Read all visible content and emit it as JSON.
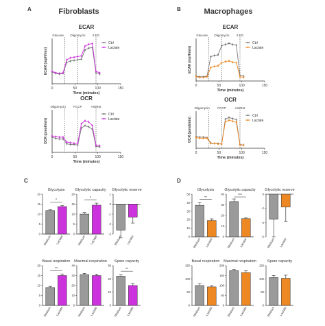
{
  "panel_labels": {
    "A": "A",
    "B": "B",
    "C": "C",
    "D": "D"
  },
  "headers": {
    "left": "Fibroblasts",
    "right": "Macrophages"
  },
  "colors": {
    "ctrl": "#777777",
    "fib_lactate": "#cc33dd",
    "mac_lactate": "#ee8822",
    "bar_gray": "#9a9a9a",
    "axis": "#333333"
  },
  "chart_data": [
    {
      "id": "A-ECAR",
      "type": "line",
      "title": "ECAR",
      "xlabel": "Time (minutes)",
      "ylabel": "ECAR (mpH/min)",
      "xlim": [
        0,
        150
      ],
      "xticks": [
        "0",
        "50",
        "100",
        "150"
      ],
      "injections": [
        "Glucose",
        "Oligomycin",
        "2-DG"
      ],
      "x": [
        0,
        8,
        16,
        24,
        32,
        40,
        48,
        56,
        64,
        72,
        80,
        88,
        96,
        104
      ],
      "ylim": [
        0,
        70
      ],
      "series": [
        {
          "name": "Ctrl",
          "values": [
            18,
            16,
            15,
            16,
            33,
            35,
            36,
            37,
            38,
            52,
            55,
            56,
            17,
            15
          ]
        },
        {
          "name": "Lactate",
          "values": [
            19,
            17,
            16,
            17,
            37,
            40,
            41,
            42,
            43,
            58,
            61,
            62,
            19,
            17
          ]
        }
      ],
      "legend": "right"
    },
    {
      "id": "A-OCR",
      "type": "line",
      "title": "OCR",
      "xlabel": "Time (minutes)",
      "ylabel": "OCR (pmol/min)",
      "xlim": [
        0,
        150
      ],
      "xticks": [
        "0",
        "50",
        "100",
        "150"
      ],
      "injections": [
        "Oligomycin",
        "FCCP",
        "AntiRot"
      ],
      "x": [
        0,
        8,
        16,
        24,
        32,
        40,
        48,
        56,
        64,
        72,
        80,
        88,
        96,
        104
      ],
      "ylim": [
        0,
        70
      ],
      "series": [
        {
          "name": "Ctrl",
          "values": [
            25,
            23,
            22,
            22,
            14,
            13,
            13,
            12,
            40,
            44,
            42,
            38,
            10,
            9
          ]
        },
        {
          "name": "Lactate",
          "values": [
            27,
            26,
            25,
            25,
            17,
            16,
            15,
            15,
            47,
            52,
            50,
            44,
            12,
            11
          ]
        }
      ],
      "legend": "right"
    },
    {
      "id": "B-ECAR",
      "type": "line",
      "title": "ECAR",
      "xlabel": "Time (minutes)",
      "ylabel": "ECAR (mpH/min)",
      "xlim": [
        0,
        150
      ],
      "xticks": [
        "0",
        "50",
        "100",
        "150"
      ],
      "injections": [
        "Glucose",
        "Oligomycin",
        "2-DG"
      ],
      "x": [
        0,
        8,
        16,
        24,
        32,
        40,
        48,
        56,
        64,
        72,
        80,
        88,
        96,
        104
      ],
      "ylim": [
        0,
        70
      ],
      "series": [
        {
          "name": "Ctrl",
          "values": [
            8,
            7,
            7,
            8,
            40,
            42,
            43,
            58,
            60,
            62,
            60,
            59,
            9,
            8
          ]
        },
        {
          "name": "Lactate",
          "values": [
            7,
            6,
            6,
            7,
            22,
            24,
            25,
            30,
            32,
            33,
            31,
            30,
            7,
            6
          ]
        }
      ],
      "legend": "right"
    },
    {
      "id": "B-OCR",
      "type": "line",
      "title": "OCR",
      "xlabel": "Time (minutes)",
      "ylabel": "OCR (pmol/min)",
      "xlim": [
        0,
        150
      ],
      "xticks": [
        "0",
        "50",
        "100",
        "150"
      ],
      "injections": [
        "Oligomycin",
        "FCCP",
        "AntiRot"
      ],
      "x": [
        0,
        8,
        16,
        24,
        32,
        40,
        48,
        56,
        64,
        72,
        80,
        88,
        96,
        104
      ],
      "ylim": [
        0,
        70
      ],
      "series": [
        {
          "name": "Ctrl",
          "values": [
            22,
            21,
            21,
            20,
            10,
            9,
            9,
            8,
            55,
            58,
            56,
            54,
            7,
            6
          ]
        },
        {
          "name": "Lactate",
          "values": [
            20,
            19,
            19,
            19,
            9,
            9,
            8,
            8,
            50,
            53,
            51,
            49,
            6,
            6
          ]
        }
      ],
      "legend": "right"
    },
    {
      "id": "C-1",
      "type": "bar",
      "title": "Glycolysis",
      "categories": [
        "Medium",
        "Lactate"
      ],
      "values": [
        11.8,
        13.8
      ],
      "errors": [
        0.4,
        0.6
      ],
      "ylim": [
        0,
        20
      ],
      "yticks": [
        "0",
        "5",
        "10",
        "15",
        "20"
      ],
      "sig": "*"
    },
    {
      "id": "C-2",
      "type": "bar",
      "title": "Glycolytic capacity",
      "categories": [
        "Medium",
        "Lactate"
      ],
      "values": [
        10.0,
        14.5
      ],
      "errors": [
        0.8,
        1.0
      ],
      "ylim": [
        0,
        20
      ],
      "yticks": [
        "0",
        "5",
        "10",
        "15",
        "20"
      ],
      "sig": "*"
    },
    {
      "id": "C-3",
      "type": "bar",
      "title": "Glycolytic reserve",
      "categories": [
        "Medium",
        "Lactate"
      ],
      "values": [
        -2.6,
        -1.3
      ],
      "errors": [
        0.8,
        0.6
      ],
      "ylim": [
        -3,
        1
      ],
      "yticks": [
        "-3",
        "-2",
        "-1",
        "0",
        "1"
      ],
      "sig": ""
    },
    {
      "id": "C-4",
      "type": "bar",
      "title": "Basal respiration",
      "categories": [
        "Medium",
        "Lactate"
      ],
      "values": [
        9,
        15
      ],
      "errors": [
        0.6,
        0.8
      ],
      "ylim": [
        0,
        20
      ],
      "yticks": [
        "0",
        "5",
        "10",
        "15",
        "20"
      ],
      "sig": "**"
    },
    {
      "id": "C-5",
      "type": "bar",
      "title": "Maximal respiration",
      "categories": [
        "Medium",
        "Lactate"
      ],
      "values": [
        31,
        30
      ],
      "errors": [
        1.2,
        1.5
      ],
      "ylim": [
        0,
        40
      ],
      "yticks": [
        "0",
        "10",
        "20",
        "30",
        "40"
      ],
      "sig": ""
    },
    {
      "id": "C-6",
      "type": "bar",
      "title": "Spare capacity",
      "categories": [
        "Medium",
        "Lactate"
      ],
      "values": [
        22,
        15
      ],
      "errors": [
        1.2,
        1.5
      ],
      "ylim": [
        0,
        30
      ],
      "yticks": [
        "0",
        "10",
        "20",
        "30"
      ],
      "sig": "**"
    },
    {
      "id": "D-1",
      "type": "bar",
      "title": "Glycolysis",
      "categories": [
        "Medium",
        "Lactate"
      ],
      "values": [
        37,
        19
      ],
      "errors": [
        3,
        2
      ],
      "ylim": [
        0,
        50
      ],
      "yticks": [
        "0",
        "10",
        "20",
        "30",
        "40",
        "50"
      ],
      "sig": "**"
    },
    {
      "id": "D-2",
      "type": "bar",
      "title": "Glycolytic capacity",
      "categories": [
        "Medium",
        "Lactate"
      ],
      "values": [
        33,
        17
      ],
      "errors": [
        2.5,
        1.0
      ],
      "ylim": [
        0,
        40
      ],
      "yticks": [
        "0",
        "10",
        "20",
        "30",
        "40"
      ],
      "sig": "***"
    },
    {
      "id": "D-3",
      "type": "bar",
      "title": "Glycolytic reserve",
      "categories": [
        "Medium",
        "Lactate"
      ],
      "values": [
        -3.5,
        -1.8
      ],
      "errors": [
        2.5,
        2.0
      ],
      "ylim": [
        -6,
        0
      ],
      "yticks": [
        "-6",
        "-4",
        "-2",
        "0"
      ],
      "sig": ""
    },
    {
      "id": "D-4",
      "type": "bar",
      "title": "Basal respiration",
      "categories": [
        "Medium",
        "Lactate"
      ],
      "values": [
        75,
        70
      ],
      "errors": [
        6,
        4
      ],
      "ylim": [
        0,
        150
      ],
      "yticks": [
        "0",
        "50",
        "100",
        "150"
      ],
      "sig": ""
    },
    {
      "id": "D-5",
      "type": "bar",
      "title": "Maximal respiration",
      "categories": [
        "Medium",
        "Lactate"
      ],
      "values": [
        175,
        165
      ],
      "errors": [
        6,
        9
      ],
      "ylim": [
        0,
        200
      ],
      "yticks": [
        "0",
        "50",
        "100",
        "150",
        "200"
      ],
      "sig": ""
    },
    {
      "id": "D-6",
      "type": "bar",
      "title": "Spare capacity",
      "categories": [
        "Medium",
        "Lactate"
      ],
      "values": [
        105,
        102
      ],
      "errors": [
        8,
        12
      ],
      "ylim": [
        0,
        150
      ],
      "yticks": [
        "0",
        "50",
        "100",
        "150"
      ],
      "sig": ""
    }
  ]
}
